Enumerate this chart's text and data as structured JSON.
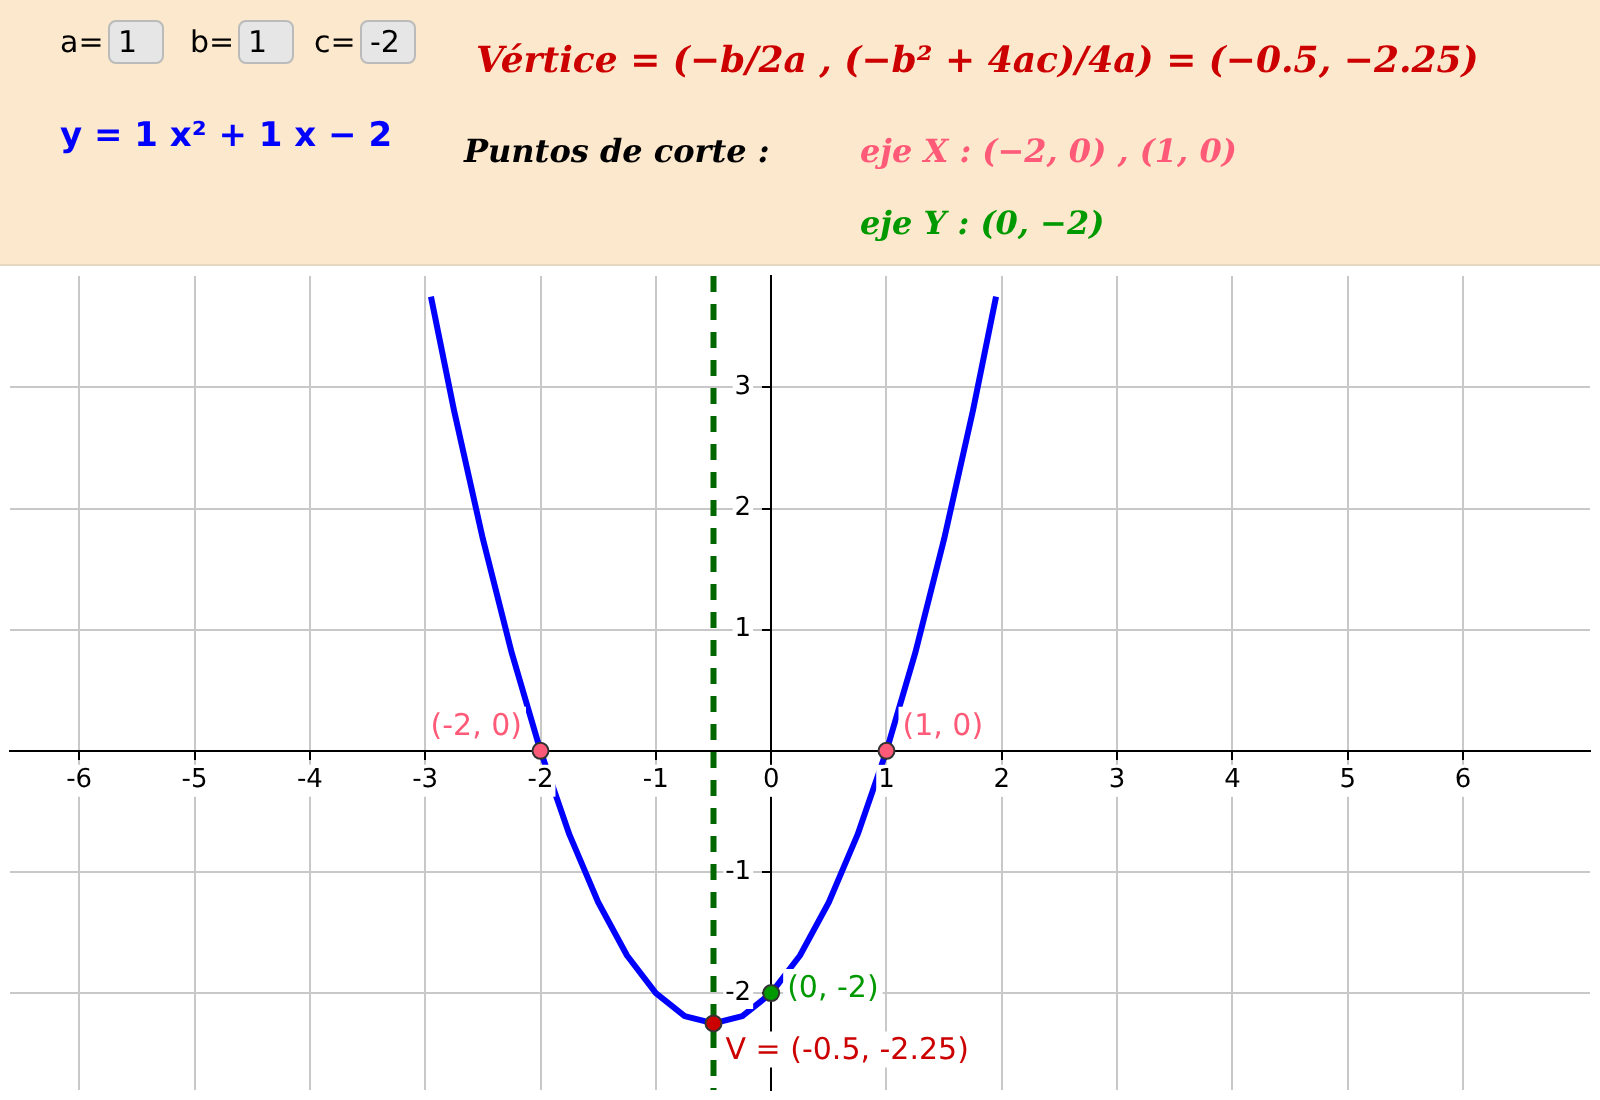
{
  "chart_data": {
    "type": "line",
    "xlim": [
      -6.6,
      7.1
    ],
    "ylim": [
      -2.8,
      3.92
    ],
    "xticks": [
      -6,
      -5,
      -4,
      -3,
      -2,
      -1,
      0,
      1,
      2,
      3,
      4,
      5,
      6
    ],
    "yticks": [
      -2,
      -1,
      1,
      2,
      3
    ],
    "grid": true,
    "legend": false,
    "series": [
      {
        "color": "#0000ff",
        "x": [
          -2.95,
          -2.75,
          -2.5,
          -2.25,
          -2,
          -1.75,
          -1.5,
          -1.25,
          -1,
          -0.75,
          -0.5,
          -0.25,
          0,
          0.25,
          0.5,
          0.75,
          1,
          1.25,
          1.5,
          1.75,
          1.95
        ],
        "values": [
          3.75,
          2.81,
          1.75,
          0.81,
          0,
          -0.69,
          -1.25,
          -1.69,
          -2,
          -2.19,
          -2.25,
          -2.19,
          -2,
          -1.69,
          -1.25,
          -0.69,
          0,
          0.81,
          1.75,
          2.81,
          3.75
        ]
      },
      {
        "type": "scatter",
        "colors": [
          "#ff5a78",
          "#ff5a78",
          "#009900",
          "#cc0000"
        ],
        "x": [
          -2,
          1,
          0,
          -0.5
        ],
        "values": [
          0,
          0,
          -2,
          -2.25
        ]
      }
    ],
    "ref_lines": [
      {
        "axis": "x",
        "value": -0.5,
        "color": "#006600",
        "line_style": "dashed"
      }
    ],
    "annotations": [
      "a=",
      "1",
      "b=",
      "1",
      "c=",
      "-2",
      "y = 1 x² + 1 x − 2",
      "Vértice = (−b/2a , (−b² + 4ac)/4a) = (−0.5, −2.25)",
      "Puntos de corte :",
      "eje X : (−2, 0) , (1, 0)",
      "eje Y : (0, −2)",
      {
        "text": "(-2, 0)",
        "x": -2,
        "y": 0
      },
      {
        "text": "(1, 0)",
        "x": 1,
        "y": 0
      },
      {
        "text": "(0, -2)",
        "x": 0,
        "y": -2
      },
      {
        "text": "V = (-0.5, -2.25)",
        "x": -0.5,
        "y": -2.25
      }
    ]
  }
}
